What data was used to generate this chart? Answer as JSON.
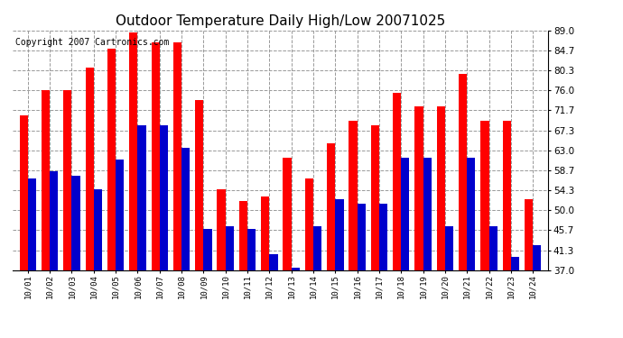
{
  "title": "Outdoor Temperature Daily High/Low 20071025",
  "copyright": "Copyright 2007 Cartronics.com",
  "dates": [
    "10/01",
    "10/02",
    "10/03",
    "10/04",
    "10/05",
    "10/06",
    "10/07",
    "10/08",
    "10/09",
    "10/10",
    "10/11",
    "10/12",
    "10/13",
    "10/14",
    "10/15",
    "10/16",
    "10/17",
    "10/18",
    "10/19",
    "10/20",
    "10/21",
    "10/22",
    "10/23",
    "10/24"
  ],
  "highs": [
    70.5,
    76.0,
    76.0,
    81.0,
    85.0,
    88.5,
    86.5,
    86.5,
    74.0,
    54.5,
    52.0,
    53.0,
    61.5,
    57.0,
    64.5,
    69.5,
    68.5,
    75.5,
    72.5,
    72.5,
    79.5,
    69.5,
    69.5,
    52.5
  ],
  "lows": [
    57.0,
    58.5,
    57.5,
    54.5,
    61.0,
    68.5,
    68.5,
    63.5,
    46.0,
    46.5,
    46.0,
    40.5,
    37.5,
    46.5,
    52.5,
    51.5,
    51.5,
    61.5,
    61.5,
    46.5,
    61.5,
    46.5,
    40.0,
    42.5
  ],
  "high_color": "#ff0000",
  "low_color": "#0000cc",
  "bg_color": "#ffffff",
  "plot_bg_color": "#ffffff",
  "grid_color": "#999999",
  "ylim": [
    37.0,
    89.0
  ],
  "yticks": [
    37.0,
    41.3,
    45.7,
    50.0,
    54.3,
    58.7,
    63.0,
    67.3,
    71.7,
    76.0,
    80.3,
    84.7,
    89.0
  ],
  "title_fontsize": 11,
  "copyright_fontsize": 7,
  "bar_width": 0.38
}
